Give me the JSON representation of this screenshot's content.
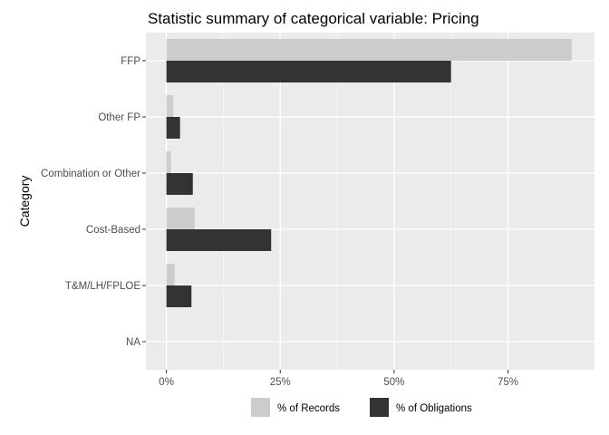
{
  "chart_data": {
    "type": "bar",
    "orientation": "horizontal",
    "title": "Statistic summary of categorical variable:  Pricing",
    "xlabel": "",
    "ylabel": "Category",
    "categories": [
      "FFP",
      "Other FP",
      "Combination or Other",
      "Cost-Based",
      "T&M/LH/FPLOE",
      "NA"
    ],
    "series": [
      {
        "name": "% of Records",
        "values": [
          89.0,
          1.5,
          1.0,
          6.2,
          1.8,
          0
        ],
        "color": "#cccccc"
      },
      {
        "name": "% of Obligations",
        "values": [
          62.5,
          3.0,
          5.8,
          23.0,
          5.5,
          0
        ],
        "color": "#333333"
      }
    ],
    "xlim": [
      -4.5,
      94
    ],
    "xticks": [
      0,
      25,
      50,
      75
    ],
    "xtick_labels": [
      "0%",
      "25%",
      "50%",
      "75%"
    ],
    "grid": true,
    "legend_position": "bottom"
  }
}
